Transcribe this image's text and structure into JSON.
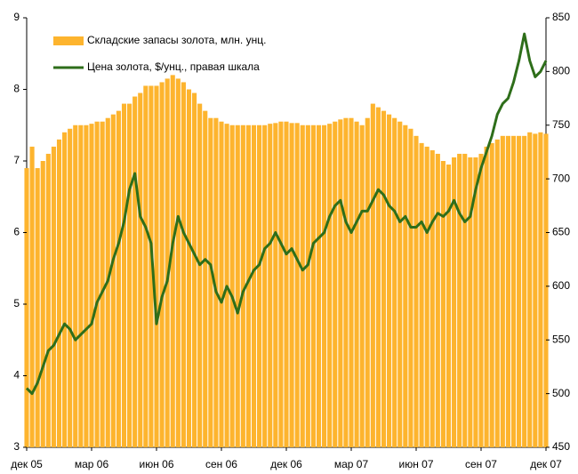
{
  "chart_data": {
    "type": "bar",
    "categories": [
      "дек 05",
      null,
      null,
      null,
      null,
      null,
      null,
      null,
      null,
      null,
      null,
      null,
      "мар 06",
      null,
      null,
      null,
      null,
      null,
      null,
      null,
      null,
      null,
      null,
      null,
      "июн 06",
      null,
      null,
      null,
      null,
      null,
      null,
      null,
      null,
      null,
      null,
      null,
      "сен 06",
      null,
      null,
      null,
      null,
      null,
      null,
      null,
      null,
      null,
      null,
      null,
      "дек 06",
      null,
      null,
      null,
      null,
      null,
      null,
      null,
      null,
      null,
      null,
      null,
      "мар 07",
      null,
      null,
      null,
      null,
      null,
      null,
      null,
      null,
      null,
      null,
      null,
      "июн 07",
      null,
      null,
      null,
      null,
      null,
      null,
      null,
      null,
      null,
      null,
      null,
      "сен 07",
      null,
      null,
      null,
      null,
      null,
      null,
      null,
      null,
      null,
      null,
      null,
      "дек 07"
    ],
    "series": [
      {
        "name": "Складские запасы золота, млн. унц.",
        "type": "bar",
        "color": "#fdb42e",
        "values": [
          6.9,
          7.2,
          6.9,
          7.0,
          7.1,
          7.2,
          7.3,
          7.4,
          7.45,
          7.5,
          7.5,
          7.5,
          7.52,
          7.55,
          7.55,
          7.6,
          7.65,
          7.7,
          7.8,
          7.8,
          7.9,
          7.95,
          8.05,
          8.05,
          8.05,
          8.1,
          8.15,
          8.2,
          8.15,
          8.1,
          8.0,
          7.95,
          7.8,
          7.7,
          7.6,
          7.6,
          7.55,
          7.52,
          7.5,
          7.5,
          7.5,
          7.5,
          7.5,
          7.5,
          7.5,
          7.52,
          7.53,
          7.55,
          7.55,
          7.53,
          7.53,
          7.5,
          7.5,
          7.5,
          7.5,
          7.5,
          7.52,
          7.55,
          7.58,
          7.6,
          7.6,
          7.55,
          7.5,
          7.6,
          7.8,
          7.75,
          7.7,
          7.65,
          7.6,
          7.55,
          7.5,
          7.45,
          7.35,
          7.25,
          7.2,
          7.15,
          7.1,
          7.0,
          6.95,
          7.05,
          7.1,
          7.1,
          7.05,
          7.05,
          7.1,
          7.2,
          7.25,
          7.3,
          7.35,
          7.35,
          7.35,
          7.35,
          7.35,
          7.4,
          7.38,
          7.4,
          7.38
        ]
      },
      {
        "name": "Цена золота, $/унц., правая шкала",
        "type": "line",
        "axis": "y2",
        "color": "#2e6e1a",
        "values": [
          505,
          500,
          510,
          525,
          540,
          545,
          555,
          565,
          560,
          550,
          555,
          560,
          565,
          585,
          595,
          605,
          625,
          640,
          660,
          690,
          705,
          665,
          655,
          640,
          565,
          590,
          605,
          640,
          665,
          650,
          640,
          630,
          620,
          625,
          620,
          595,
          585,
          600,
          590,
          575,
          595,
          605,
          615,
          620,
          635,
          640,
          650,
          640,
          630,
          635,
          625,
          615,
          620,
          640,
          645,
          650,
          665,
          675,
          680,
          660,
          650,
          660,
          670,
          670,
          680,
          690,
          685,
          675,
          670,
          660,
          665,
          655,
          655,
          660,
          650,
          660,
          668,
          665,
          670,
          680,
          668,
          660,
          665,
          690,
          710,
          725,
          740,
          760,
          770,
          775,
          790,
          810,
          835,
          810,
          795,
          800,
          810
        ]
      }
    ],
    "ylim": [
      3,
      9
    ],
    "yticks": [
      3,
      4,
      5,
      6,
      7,
      8,
      9
    ],
    "y2lim": [
      450,
      850
    ],
    "y2ticks": [
      450,
      500,
      550,
      600,
      650,
      700,
      750,
      800,
      850
    ]
  }
}
